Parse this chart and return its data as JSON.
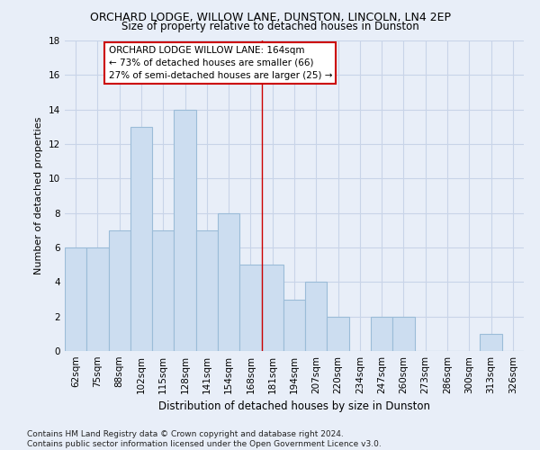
{
  "title": "ORCHARD LODGE, WILLOW LANE, DUNSTON, LINCOLN, LN4 2EP",
  "subtitle": "Size of property relative to detached houses in Dunston",
  "xlabel": "Distribution of detached houses by size in Dunston",
  "ylabel": "Number of detached properties",
  "categories": [
    "62sqm",
    "75sqm",
    "88sqm",
    "102sqm",
    "115sqm",
    "128sqm",
    "141sqm",
    "154sqm",
    "168sqm",
    "181sqm",
    "194sqm",
    "207sqm",
    "220sqm",
    "234sqm",
    "247sqm",
    "260sqm",
    "273sqm",
    "286sqm",
    "300sqm",
    "313sqm",
    "326sqm"
  ],
  "values": [
    6,
    6,
    7,
    13,
    7,
    14,
    7,
    8,
    5,
    5,
    3,
    4,
    2,
    0,
    2,
    2,
    0,
    0,
    0,
    1,
    0
  ],
  "bar_color": "#ccddf0",
  "bar_edge_color": "#9bbcd8",
  "vline_x_index": 8,
  "vline_color": "#cc0000",
  "annotation_text": "ORCHARD LODGE WILLOW LANE: 164sqm\n← 73% of detached houses are smaller (66)\n27% of semi-detached houses are larger (25) →",
  "annotation_box_color": "#ffffff",
  "annotation_box_edge_color": "#cc0000",
  "ylim": [
    0,
    18
  ],
  "yticks": [
    0,
    2,
    4,
    6,
    8,
    10,
    12,
    14,
    16,
    18
  ],
  "grid_color": "#c8d4e8",
  "background_color": "#e8eef8",
  "footnote": "Contains HM Land Registry data © Crown copyright and database right 2024.\nContains public sector information licensed under the Open Government Licence v3.0.",
  "title_fontsize": 9,
  "subtitle_fontsize": 8.5,
  "xlabel_fontsize": 8.5,
  "ylabel_fontsize": 8,
  "tick_fontsize": 7.5,
  "annotation_fontsize": 7.5,
  "footnote_fontsize": 6.5
}
